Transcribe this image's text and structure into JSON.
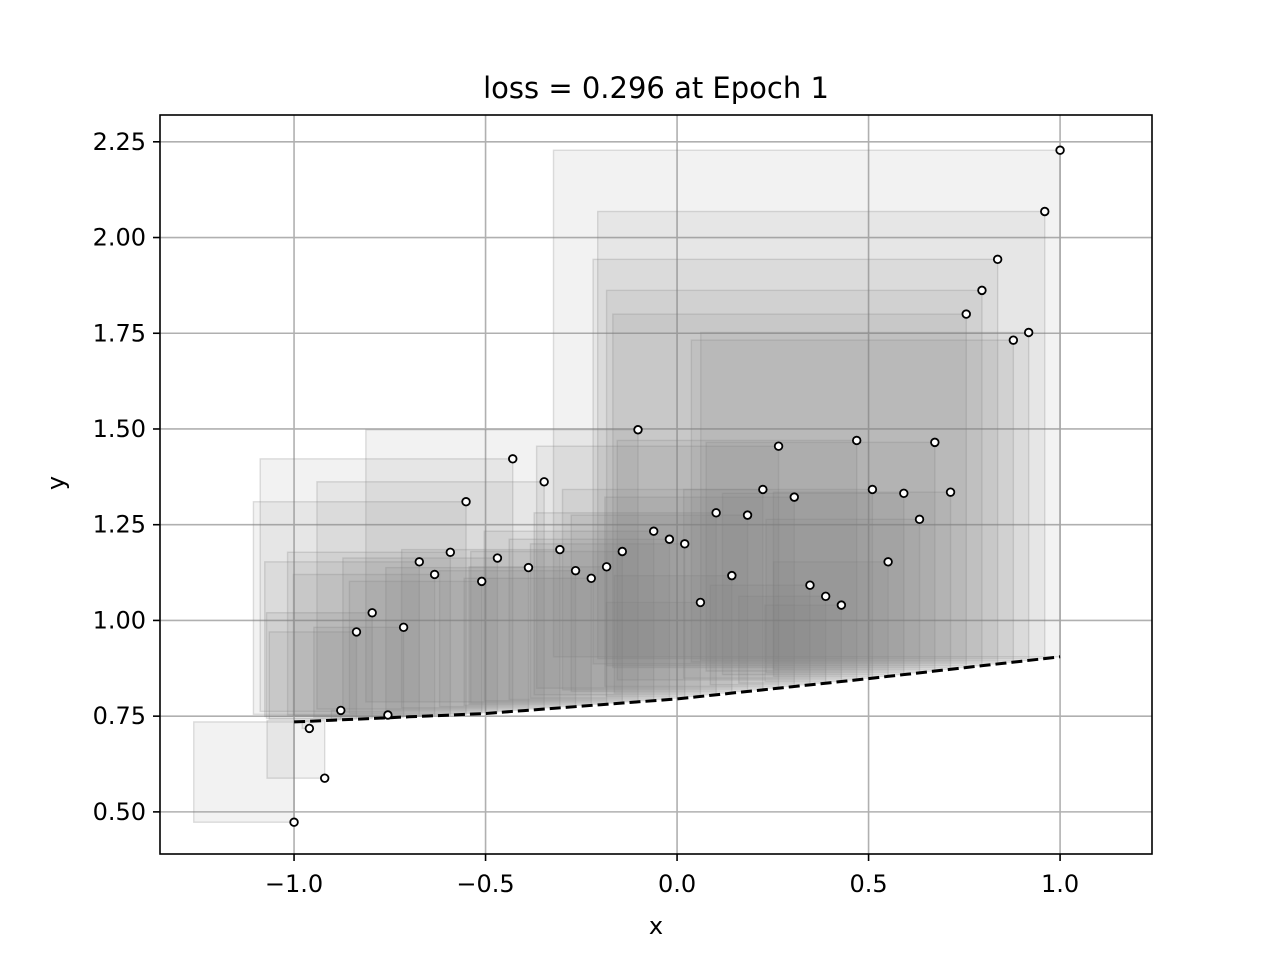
{
  "chart_data": {
    "type": "scatter",
    "title": "loss = 0.296 at Epoch 1",
    "xlabel": "x",
    "ylabel": "y",
    "xlim": [
      -1.35,
      1.24
    ],
    "ylim": [
      0.39,
      2.32
    ],
    "grid": true,
    "xticks": [
      -1.0,
      -0.5,
      0.0,
      0.5,
      1.0
    ],
    "xtick_labels": [
      "−1.0",
      "−0.5",
      "0.0",
      "0.5",
      "1.0"
    ],
    "yticks": [
      0.5,
      0.75,
      1.0,
      1.25,
      1.5,
      1.75,
      2.0,
      2.25
    ],
    "ytick_labels": [
      "0.50",
      "0.75",
      "1.00",
      "1.25",
      "1.50",
      "1.75",
      "2.00",
      "2.25"
    ],
    "points": {
      "x": [
        -1.0,
        -0.96,
        -0.92,
        -0.878,
        -0.837,
        -0.796,
        -0.755,
        -0.714,
        -0.673,
        -0.633,
        -0.592,
        -0.551,
        -0.51,
        -0.469,
        -0.429,
        -0.388,
        -0.347,
        -0.306,
        -0.265,
        -0.224,
        -0.184,
        -0.143,
        -0.102,
        -0.061,
        -0.02,
        0.02,
        0.061,
        0.102,
        0.143,
        0.184,
        0.224,
        0.265,
        0.306,
        0.347,
        0.388,
        0.429,
        0.469,
        0.51,
        0.551,
        0.592,
        0.633,
        0.673,
        0.714,
        0.755,
        0.796,
        0.837,
        0.878,
        0.918,
        0.96,
        1.0
      ],
      "y": [
        0.473,
        0.718,
        0.588,
        0.765,
        0.97,
        1.02,
        0.753,
        0.982,
        1.153,
        1.12,
        1.178,
        1.31,
        1.102,
        1.163,
        1.422,
        1.138,
        1.362,
        1.185,
        1.13,
        1.11,
        1.14,
        1.18,
        1.498,
        1.233,
        1.212,
        1.2,
        1.047,
        1.281,
        1.117,
        1.275,
        1.342,
        1.455,
        1.322,
        1.092,
        1.063,
        1.04,
        1.47,
        1.342,
        1.153,
        1.332,
        1.264,
        1.465,
        1.335,
        1.8,
        1.862,
        1.943,
        1.732,
        1.752,
        2.068,
        2.228
      ]
    },
    "fit_line": {
      "style": "dashed",
      "color": "#000000",
      "x": [
        -1.0,
        -0.5,
        0.0,
        0.5,
        1.0
      ],
      "y": [
        0.735,
        0.757,
        0.795,
        0.848,
        0.905
      ]
    },
    "squares_color": "#808080"
  }
}
